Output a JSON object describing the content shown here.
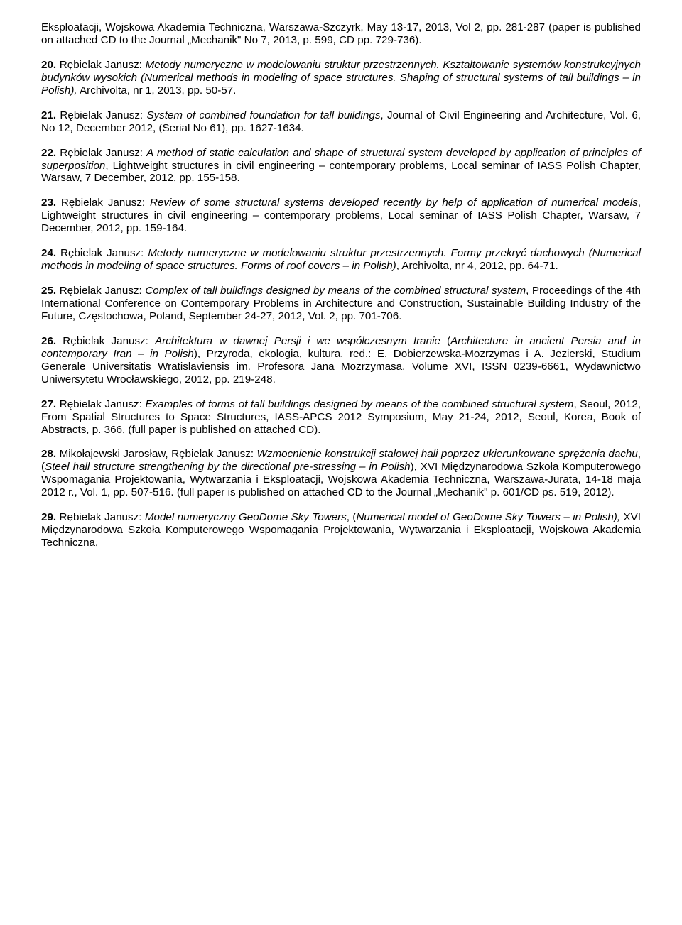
{
  "entries": [
    {
      "pre": "Eksploatacji, Wojskowa Akademia Techniczna, Warszawa-Szczyrk, May 13-17, 2013, Vol 2, pp. 281-287 (paper is published on attached CD to the Journal „Mechanik\" No 7, 2013, p. 599, CD pp. 729-736)."
    },
    {
      "num": "20.",
      "author": "Rębielak Janusz: ",
      "title_it": "Metody numeryczne w modelowaniu struktur przestrzennych. Kształtowanie systemów konstrukcyjnych budynków wysokich (Numerical methods in modeling of space structures. Shaping of structural systems of tall buildings – in Polish),",
      "rest": " Archivolta, nr 1, 2013, pp. 50-57."
    },
    {
      "num": "21.",
      "author": "Rębielak Janusz: ",
      "title_it": "System of combined foundation for tall buildings",
      "rest": ", Journal of Civil Engineering and Architecture, Vol. 6, No 12, December 2012, (Serial No 61), pp. 1627-1634."
    },
    {
      "num": "22.",
      "author": "Rębielak Janusz: ",
      "title_it": "A method of static calculation and shape of structural system developed by application of principles of superposition",
      "rest": ", Lightweight structures in civil engineering – contemporary problems, Local seminar of IASS Polish Chapter, Warsaw, 7 December, 2012, pp. 155-158."
    },
    {
      "num": "23.",
      "author": "Rębielak Janusz: ",
      "title_it": "Review of some structural systems developed recently by help of application of numerical models",
      "rest": ", Lightweight structures in civil engineering – contemporary problems, Local seminar of IASS Polish Chapter, Warsaw, 7 December, 2012, pp. 159-164."
    },
    {
      "num": "24.",
      "author": "Rębielak Janusz: ",
      "title_it": "Metody numeryczne w modelowaniu struktur przestrzennych. Formy przekryć dachowych (Numerical methods in modeling of space structures. Forms of roof covers – in Polish)",
      "rest": ", Archivolta, nr 4, 2012, pp. 64-71."
    },
    {
      "num": "25.",
      "author": "Rębielak Janusz: ",
      "title_it": "Complex of tall buildings designed by means of the combined structural system",
      "rest": ", Proceedings of the 4th International Conference on Contemporary Problems in Architecture and Construction, Sustainable Building Industry of the Future, Częstochowa, Poland, September 24-27, 2012, Vol. 2, pp. 701-706."
    },
    {
      "num": "26.",
      "author": "Rębielak Janusz: ",
      "title_it": "Architektura w dawnej Persji i we współczesnym Iranie",
      "mid_plain": " (",
      "title_it2": "Architecture in ancient Persia and in contemporary Iran – in Polish",
      "rest": "), Przyroda, ekologia, kultura, red.: E. Dobierzewska-Mozrzymas i A. Jezierski, Studium Generale Universitatis Wratislaviensis im. Profesora Jana Mozrzymasa, Volume XVI, ISSN 0239-6661, Wydawnictwo Uniwersytetu Wrocławskiego, 2012, pp. 219-248."
    },
    {
      "num": "27.",
      "author": "Rębielak Janusz: ",
      "title_it": "Examples of forms of tall buildings designed by means of the combined structural system",
      "rest": ", Seoul, 2012, From Spatial Structures to Space Structures, IASS-APCS 2012 Symposium, May 21-24, 2012, Seoul, Korea, Book of Abstracts, p. 366, (full paper is published on attached CD)."
    },
    {
      "num": "28.",
      "author": "Mikołajewski Jarosław, Rębielak Janusz: ",
      "title_it": "Wzmocnienie konstrukcji stalowej hali poprzez ukierunkowane sprężenia dachu",
      "mid_plain": ", (",
      "title_it2": "Steel hall structure strengthening by the directional pre-stressing – in Polish",
      "rest": "), XVI Międzynarodowa Szkoła Komputerowego Wspomagania Projektowania, Wytwarzania i Eksploatacji, Wojskowa Akademia Techniczna, Warszawa-Jurata, 14-18 maja 2012 r., Vol. 1, pp. 507-516. (full paper is published on attached CD to the Journal „Mechanik\" p. 601/CD ps. 519, 2012)."
    },
    {
      "num": "29.",
      "author": "Rębielak Janusz: ",
      "title_it": "Model numeryczny GeoDome Sky Towers",
      "mid_plain": ", (",
      "title_it2": "Numerical model of GeoDome Sky Towers – in Polish),",
      "rest": " XVI Międzynarodowa Szkoła Komputerowego Wspomagania Projektowania, Wytwarzania i Eksploatacji, Wojskowa Akademia Techniczna,"
    }
  ]
}
